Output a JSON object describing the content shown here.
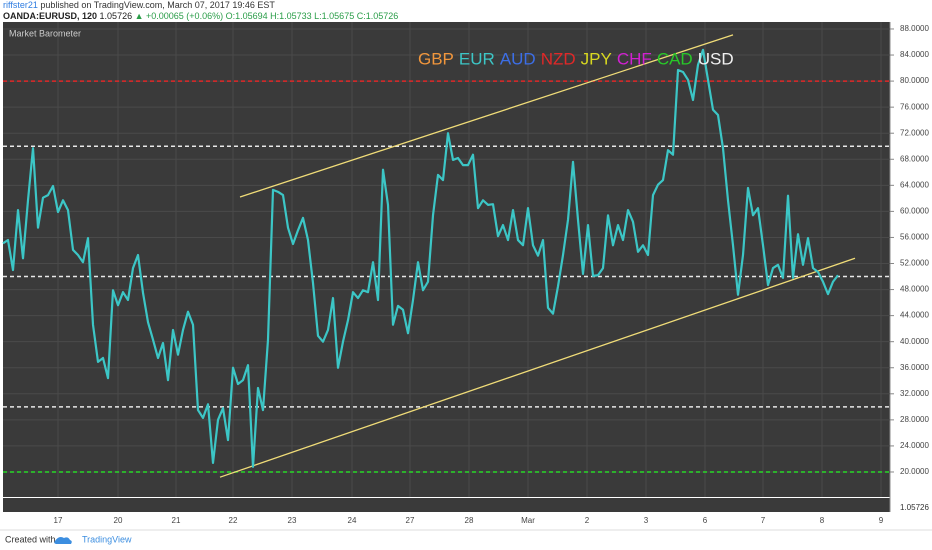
{
  "header": {
    "author": "riffster21",
    "published": "published on TradingView.com, March 07, 2017 19:46 EST",
    "symbol": "OANDA:EURUSD, 120",
    "last": "1.05726",
    "change": "▲ +0.00065 (+0.06%)",
    "ohlc": "O:1.05694 H:1.05733 L:1.05675 C:1.05726"
  },
  "footer": {
    "created": "Created with",
    "brand": "TradingView"
  },
  "lower_pane": {
    "price_label": "1.05726"
  },
  "chart_data": {
    "type": "line",
    "title": "Market Barometer",
    "series": [
      {
        "color": "#3cc6c6",
        "values": [
          55.1,
          55.6,
          51.0,
          60.2,
          52.8,
          61.7,
          69.7,
          57.5,
          62.1,
          62.5,
          63.9,
          59.9,
          61.7,
          60.2,
          54.1,
          53.3,
          52.2,
          55.9,
          42.6,
          36.9,
          37.5,
          34.4,
          47.9,
          45.6,
          47.6,
          46.4,
          51.3,
          53.3,
          47.5,
          43.0,
          40.3,
          37.5,
          39.8,
          34.1,
          41.8,
          38.0,
          41.8,
          44.6,
          42.6,
          29.5,
          28.3,
          30.4,
          21.4,
          28.0,
          29.8,
          24.9,
          36.0,
          33.5,
          34.1,
          36.4,
          20.8,
          32.9,
          29.5,
          40.3,
          63.3,
          63.0,
          62.5,
          57.5,
          55.0,
          57.1,
          59.0,
          55.6,
          49.0,
          40.9,
          40.0,
          41.8,
          46.7,
          36.0,
          40.0,
          43.3,
          47.6,
          46.7,
          47.9,
          47.6,
          52.2,
          46.4,
          66.4,
          61.0,
          42.6,
          45.5,
          44.9,
          41.3,
          46.4,
          52.2,
          47.9,
          49.2,
          59.4,
          65.6,
          64.8,
          72.0,
          67.9,
          68.2,
          67.1,
          67.1,
          68.7,
          60.5,
          61.7,
          61.0,
          61.1,
          56.2,
          57.9,
          55.6,
          60.2,
          55.6,
          54.8,
          60.5,
          54.8,
          53.2,
          55.6,
          45.2,
          44.3,
          48.5,
          53.3,
          58.7,
          67.6,
          58.7,
          50.4,
          57.9,
          50.1,
          50.2,
          51.3,
          59.4,
          54.8,
          57.9,
          55.6,
          60.2,
          58.4,
          53.8,
          54.8,
          53.3,
          62.5,
          64.1,
          64.8,
          69.4,
          68.7,
          81.7,
          81.4,
          80.2,
          77.1,
          82.5,
          84.8,
          80.2,
          75.6,
          74.8,
          69.7,
          61.7,
          54.8,
          47.2,
          53.3,
          63.6,
          59.4,
          60.5,
          54.8,
          48.7,
          51.3,
          51.8,
          49.8,
          62.4,
          49.8,
          56.5,
          51.8,
          55.9,
          51.3,
          50.7,
          49.2,
          47.3,
          49.2,
          50.2
        ]
      }
    ],
    "annotations": [
      {
        "text": "GBP",
        "color": "#f0963c"
      },
      {
        "text": "EUR",
        "color": "#3cc6c6"
      },
      {
        "text": "AUD",
        "color": "#3c6ee6"
      },
      {
        "text": "NZD",
        "color": "#e02828"
      },
      {
        "text": "JPY",
        "color": "#d8d820"
      },
      {
        "text": "CHF",
        "color": "#d020d0"
      },
      {
        "text": "CAD",
        "color": "#28c828"
      },
      {
        "text": "USD",
        "color": "#f0f0f0"
      }
    ],
    "hlines": [
      {
        "value": 80,
        "color": "#e02828"
      },
      {
        "value": 70,
        "color": "#e8e8e8"
      },
      {
        "value": 50,
        "color": "#e8e8e8"
      },
      {
        "value": 30,
        "color": "#e8e8e8"
      },
      {
        "value": 20,
        "color": "#28d828"
      }
    ],
    "trendlines": [
      {
        "x": [
          47.4,
          146
        ],
        "values": [
          62.2,
          87.1
        ],
        "color": "#f0dc78"
      },
      {
        "x": [
          43.4,
          170.4
        ],
        "values": [
          19.2,
          52.8
        ],
        "color": "#f0dc78"
      }
    ],
    "xlim": [
      0,
      177.4
    ],
    "ylim": [
      16.16,
      89.07
    ],
    "xticks": [
      {
        "value": 11,
        "label": "17"
      },
      {
        "value": 23,
        "label": "20"
      },
      {
        "value": 34.6,
        "label": "21"
      },
      {
        "value": 46,
        "label": "22"
      },
      {
        "value": 57.8,
        "label": "23"
      },
      {
        "value": 69.8,
        "label": "24"
      },
      {
        "value": 81.4,
        "label": "27"
      },
      {
        "value": 93.2,
        "label": "28"
      },
      {
        "value": 105,
        "label": "Mar"
      },
      {
        "value": 116.8,
        "label": "2"
      },
      {
        "value": 128.6,
        "label": "3"
      },
      {
        "value": 140.4,
        "label": "6"
      },
      {
        "value": 152,
        "label": "7"
      },
      {
        "value": 163.8,
        "label": "8"
      },
      {
        "value": 175.6,
        "label": "9"
      }
    ],
    "yticks": [
      {
        "value": 20,
        "label": "20.0000"
      },
      {
        "value": 24,
        "label": "24.0000"
      },
      {
        "value": 28,
        "label": "28.0000"
      },
      {
        "value": 32,
        "label": "32.0000"
      },
      {
        "value": 36,
        "label": "36.0000"
      },
      {
        "value": 40,
        "label": "40.0000"
      },
      {
        "value": 44,
        "label": "44.0000"
      },
      {
        "value": 48,
        "label": "48.0000"
      },
      {
        "value": 52,
        "label": "52.0000"
      },
      {
        "value": 56,
        "label": "56.0000"
      },
      {
        "value": 60,
        "label": "60.0000"
      },
      {
        "value": 64,
        "label": "64.0000"
      },
      {
        "value": 68,
        "label": "68.0000"
      },
      {
        "value": 72,
        "label": "72.0000"
      },
      {
        "value": 76,
        "label": "76.0000"
      },
      {
        "value": 80,
        "label": "80.0000"
      },
      {
        "value": 84,
        "label": "84.0000"
      },
      {
        "value": 88,
        "label": "88.0000"
      }
    ],
    "grid": true
  }
}
